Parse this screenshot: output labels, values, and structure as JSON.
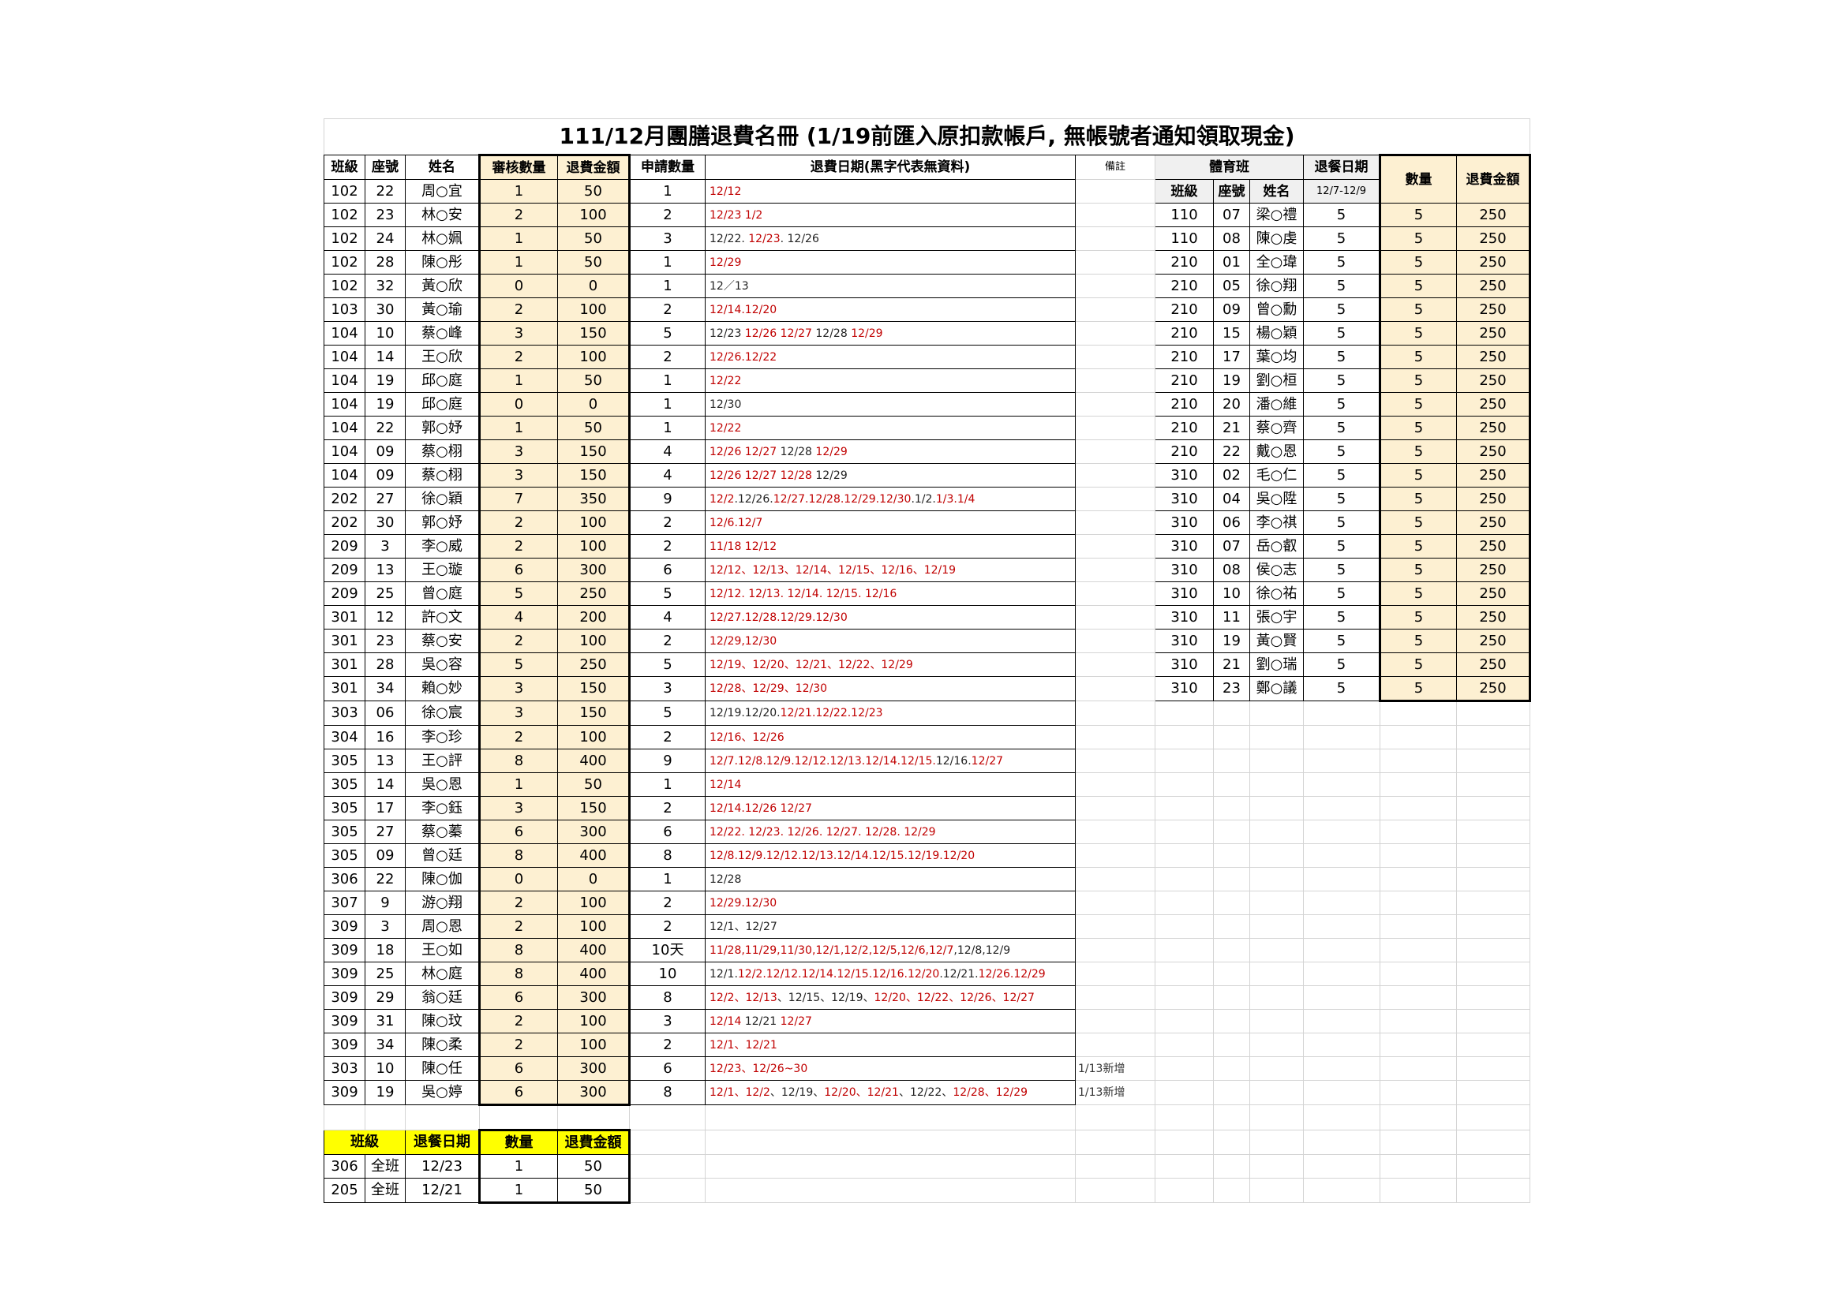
{
  "title": "111/12月團膳退費名冊 (1/19前匯入原扣款帳戶, 無帳號者通知領取現金)",
  "colors": {
    "red": "#c00000",
    "black": "#222222",
    "highlight": "#fdf0d2",
    "yellow": "#ffff00"
  },
  "main": {
    "headers": [
      "班級",
      "座號",
      "姓名",
      "審核數量",
      "退費金額",
      "申請數量",
      "退費日期(黑字代表無資料)",
      "備註"
    ],
    "rows": [
      {
        "cls": "102",
        "seat": "22",
        "name": "周○宜",
        "audit": "1",
        "amount": "50",
        "apply": "1",
        "dates": [
          {
            "t": "12/12",
            "c": "r"
          }
        ],
        "note": ""
      },
      {
        "cls": "102",
        "seat": "23",
        "name": "林○安",
        "audit": "2",
        "amount": "100",
        "apply": "2",
        "dates": [
          {
            "t": "12/23 1/2",
            "c": "r"
          }
        ],
        "note": ""
      },
      {
        "cls": "102",
        "seat": "24",
        "name": "林○姵",
        "audit": "1",
        "amount": "50",
        "apply": "3",
        "dates": [
          {
            "t": "12/22. ",
            "c": "k"
          },
          {
            "t": "12/23",
            "c": "r"
          },
          {
            "t": ". 12/26",
            "c": "k"
          }
        ],
        "note": ""
      },
      {
        "cls": "102",
        "seat": "28",
        "name": "陳○彤",
        "audit": "1",
        "amount": "50",
        "apply": "1",
        "dates": [
          {
            "t": "12/29",
            "c": "r"
          }
        ],
        "note": ""
      },
      {
        "cls": "102",
        "seat": "32",
        "name": "黃○欣",
        "audit": "0",
        "amount": "0",
        "apply": "1",
        "dates": [
          {
            "t": "12／13",
            "c": "k"
          }
        ],
        "note": ""
      },
      {
        "cls": "103",
        "seat": "30",
        "name": "黃○瑜",
        "audit": "2",
        "amount": "100",
        "apply": "2",
        "dates": [
          {
            "t": "12/14.12/20",
            "c": "r"
          }
        ],
        "note": ""
      },
      {
        "cls": "104",
        "seat": "10",
        "name": "蔡○峰",
        "audit": "3",
        "amount": "150",
        "apply": "5",
        "dates": [
          {
            "t": "12/23 ",
            "c": "k"
          },
          {
            "t": "12/26 12/27",
            "c": "r"
          },
          {
            "t": " 12/28 ",
            "c": "k"
          },
          {
            "t": "12/29",
            "c": "r"
          }
        ],
        "note": ""
      },
      {
        "cls": "104",
        "seat": "14",
        "name": "王○欣",
        "audit": "2",
        "amount": "100",
        "apply": "2",
        "dates": [
          {
            "t": "12/26.12/22",
            "c": "r"
          }
        ],
        "note": ""
      },
      {
        "cls": "104",
        "seat": "19",
        "name": "邱○庭",
        "audit": "1",
        "amount": "50",
        "apply": "1",
        "dates": [
          {
            "t": "12/22",
            "c": "r"
          }
        ],
        "note": ""
      },
      {
        "cls": "104",
        "seat": "19",
        "name": "邱○庭",
        "audit": "0",
        "amount": "0",
        "apply": "1",
        "dates": [
          {
            "t": "12/30",
            "c": "k"
          }
        ],
        "note": ""
      },
      {
        "cls": "104",
        "seat": "22",
        "name": "郭○妤",
        "audit": "1",
        "amount": "50",
        "apply": "1",
        "dates": [
          {
            "t": "12/22",
            "c": "r"
          }
        ],
        "note": ""
      },
      {
        "cls": "104",
        "seat": "09",
        "name": "蔡○栩",
        "audit": "3",
        "amount": "150",
        "apply": "4",
        "dates": [
          {
            "t": "12/26 12/27",
            "c": "r"
          },
          {
            "t": " 12/28 ",
            "c": "k"
          },
          {
            "t": "12/29",
            "c": "r"
          }
        ],
        "note": ""
      },
      {
        "cls": "104",
        "seat": "09",
        "name": "蔡○栩",
        "audit": "3",
        "amount": "150",
        "apply": "4",
        "dates": [
          {
            "t": "12/26 12/27 12/28",
            "c": "r"
          },
          {
            "t": " 12/29",
            "c": "k"
          }
        ],
        "note": ""
      },
      {
        "cls": "202",
        "seat": "27",
        "name": "徐○穎",
        "audit": "7",
        "amount": "350",
        "apply": "9",
        "dates": [
          {
            "t": "12/2",
            "c": "r"
          },
          {
            "t": ".12/26.",
            "c": "k"
          },
          {
            "t": "12/27.12/28.12/29.12/30",
            "c": "r"
          },
          {
            "t": ".1/2.",
            "c": "k"
          },
          {
            "t": "1/3.1/4",
            "c": "r"
          }
        ],
        "note": ""
      },
      {
        "cls": "202",
        "seat": "30",
        "name": "郭○妤",
        "audit": "2",
        "amount": "100",
        "apply": "2",
        "dates": [
          {
            "t": "12/6.12/7",
            "c": "r"
          }
        ],
        "note": ""
      },
      {
        "cls": "209",
        "seat": "3",
        "name": "李○威",
        "audit": "2",
        "amount": "100",
        "apply": "2",
        "dates": [
          {
            "t": "11/18 12/12",
            "c": "r"
          }
        ],
        "note": ""
      },
      {
        "cls": "209",
        "seat": "13",
        "name": "王○璇",
        "audit": "6",
        "amount": "300",
        "apply": "6",
        "dates": [
          {
            "t": "12/12、12/13、12/14、12/15、12/16、12/19",
            "c": "r"
          }
        ],
        "note": ""
      },
      {
        "cls": "209",
        "seat": "25",
        "name": "曾○庭",
        "audit": "5",
        "amount": "250",
        "apply": "5",
        "dates": [
          {
            "t": "12/12. 12/13. 12/14. 12/15. 12/16",
            "c": "r"
          }
        ],
        "note": ""
      },
      {
        "cls": "301",
        "seat": "12",
        "name": "許○文",
        "audit": "4",
        "amount": "200",
        "apply": "4",
        "dates": [
          {
            "t": "12/27.12/28.12/29.12/30",
            "c": "r"
          }
        ],
        "note": ""
      },
      {
        "cls": "301",
        "seat": "23",
        "name": "蔡○安",
        "audit": "2",
        "amount": "100",
        "apply": "2",
        "dates": [
          {
            "t": "12/29,12/30",
            "c": "r"
          }
        ],
        "note": ""
      },
      {
        "cls": "301",
        "seat": "28",
        "name": "吳○容",
        "audit": "5",
        "amount": "250",
        "apply": "5",
        "dates": [
          {
            "t": "12/19、12/20、12/21、12/22、12/29",
            "c": "r"
          }
        ],
        "note": ""
      },
      {
        "cls": "301",
        "seat": "34",
        "name": "賴○妙",
        "audit": "3",
        "amount": "150",
        "apply": "3",
        "dates": [
          {
            "t": "12/28、12/29、12/30",
            "c": "r"
          }
        ],
        "note": ""
      },
      {
        "cls": "303",
        "seat": "06",
        "name": "徐○宸",
        "audit": "3",
        "amount": "150",
        "apply": "5",
        "dates": [
          {
            "t": "12/19.12/20.",
            "c": "k"
          },
          {
            "t": "12/21.12/22.12/23",
            "c": "r"
          }
        ],
        "note": ""
      },
      {
        "cls": "304",
        "seat": "16",
        "name": "李○珍",
        "audit": "2",
        "amount": "100",
        "apply": "2",
        "dates": [
          {
            "t": "12/16、12/26",
            "c": "r"
          }
        ],
        "note": ""
      },
      {
        "cls": "305",
        "seat": "13",
        "name": "王○評",
        "audit": "8",
        "amount": "400",
        "apply": "9",
        "dates": [
          {
            "t": "12/7.12/8.12/9.12/12.12/13.12/14.12/15.",
            "c": "r"
          },
          {
            "t": "12/16.",
            "c": "k"
          },
          {
            "t": "12/27",
            "c": "r"
          }
        ],
        "note": ""
      },
      {
        "cls": "305",
        "seat": "14",
        "name": "吳○恩",
        "audit": "1",
        "amount": "50",
        "apply": "1",
        "dates": [
          {
            "t": "12/14",
            "c": "r"
          }
        ],
        "note": ""
      },
      {
        "cls": "305",
        "seat": "17",
        "name": "李○鈺",
        "audit": "3",
        "amount": "150",
        "apply": "2",
        "dates": [
          {
            "t": "12/14.12/26 12/27",
            "c": "r"
          }
        ],
        "note": ""
      },
      {
        "cls": "305",
        "seat": "27",
        "name": "蔡○蓁",
        "audit": "6",
        "amount": "300",
        "apply": "6",
        "dates": [
          {
            "t": "12/22. 12/23. 12/26. 12/27. 12/28. 12/29",
            "c": "r"
          }
        ],
        "note": ""
      },
      {
        "cls": "305",
        "seat": "09",
        "name": "曾○廷",
        "audit": "8",
        "amount": "400",
        "apply": "8",
        "dates": [
          {
            "t": "12/8.12/9.12/12.12/13.12/14.12/15.12/19.12/20",
            "c": "r"
          }
        ],
        "note": ""
      },
      {
        "cls": "306",
        "seat": "22",
        "name": "陳○伽",
        "audit": "0",
        "amount": "0",
        "apply": "1",
        "dates": [
          {
            "t": "12/28",
            "c": "k"
          }
        ],
        "note": ""
      },
      {
        "cls": "307",
        "seat": "9",
        "name": "游○翔",
        "audit": "2",
        "amount": "100",
        "apply": "2",
        "dates": [
          {
            "t": "12/29.12/30",
            "c": "r"
          }
        ],
        "note": ""
      },
      {
        "cls": "309",
        "seat": "3",
        "name": "周○恩",
        "audit": "2",
        "amount": "100",
        "apply": "2",
        "dates": [
          {
            "t": "12/1、12/27",
            "c": "k"
          }
        ],
        "note": ""
      },
      {
        "cls": "309",
        "seat": "18",
        "name": "王○如",
        "audit": "8",
        "amount": "400",
        "apply": "10天",
        "dates": [
          {
            "t": "11/28,11/29,11/30,12/1,12/2,12/5,12/6,12/7",
            "c": "r"
          },
          {
            "t": ",12/8,12/9",
            "c": "k"
          }
        ],
        "note": ""
      },
      {
        "cls": "309",
        "seat": "25",
        "name": "林○庭",
        "audit": "8",
        "amount": "400",
        "apply": "10",
        "dates": [
          {
            "t": "12/1.",
            "c": "k"
          },
          {
            "t": "12/2.12/12.12/14.12/15.12/16.12/20",
            "c": "r"
          },
          {
            "t": ".12/21.",
            "c": "k"
          },
          {
            "t": "12/26.12/29",
            "c": "r"
          }
        ],
        "note": ""
      },
      {
        "cls": "309",
        "seat": "29",
        "name": "翁○廷",
        "audit": "6",
        "amount": "300",
        "apply": "8",
        "dates": [
          {
            "t": "12/2、12/13",
            "c": "r"
          },
          {
            "t": "、12/15、12/19、",
            "c": "k"
          },
          {
            "t": "12/20、12/22、12/26、12/27",
            "c": "r"
          }
        ],
        "note": ""
      },
      {
        "cls": "309",
        "seat": "31",
        "name": "陳○玟",
        "audit": "2",
        "amount": "100",
        "apply": "3",
        "dates": [
          {
            "t": "12/14",
            "c": "r"
          },
          {
            "t": " 12/21 ",
            "c": "k"
          },
          {
            "t": "12/27",
            "c": "r"
          }
        ],
        "note": ""
      },
      {
        "cls": "309",
        "seat": "34",
        "name": "陳○柔",
        "audit": "2",
        "amount": "100",
        "apply": "2",
        "dates": [
          {
            "t": "12/1、12/21",
            "c": "r"
          }
        ],
        "note": ""
      },
      {
        "cls": "303",
        "seat": "10",
        "name": "陳○任",
        "audit": "6",
        "amount": "300",
        "apply": "6",
        "dates": [
          {
            "t": "12/23、12/26~30",
            "c": "r"
          }
        ],
        "note": "1/13新增"
      },
      {
        "cls": "309",
        "seat": "19",
        "name": "吳○婷",
        "audit": "6",
        "amount": "300",
        "apply": "8",
        "dates": [
          {
            "t": "12/1、12/2",
            "c": "r"
          },
          {
            "t": "、12/19、",
            "c": "k"
          },
          {
            "t": "12/20、12/21",
            "c": "r"
          },
          {
            "t": "、12/22、",
            "c": "k"
          },
          {
            "t": "12/28、12/29",
            "c": "r"
          }
        ],
        "note": "1/13新增"
      }
    ]
  },
  "sports": {
    "group_label": "體育班",
    "date_label": "退餐日期",
    "qty_label": "數量",
    "amount_label": "退費金額",
    "sub_headers": [
      "班級",
      "座號",
      "姓名"
    ],
    "date_range": "12/7-12/9",
    "rows": [
      {
        "cls": "110",
        "seat": "07",
        "name": "梁○禮",
        "days": "5",
        "qty": "5",
        "amount": "250"
      },
      {
        "cls": "110",
        "seat": "08",
        "name": "陳○虔",
        "days": "5",
        "qty": "5",
        "amount": "250"
      },
      {
        "cls": "210",
        "seat": "01",
        "name": "全○瑋",
        "days": "5",
        "qty": "5",
        "amount": "250"
      },
      {
        "cls": "210",
        "seat": "05",
        "name": "徐○翔",
        "days": "5",
        "qty": "5",
        "amount": "250"
      },
      {
        "cls": "210",
        "seat": "09",
        "name": "曾○勳",
        "days": "5",
        "qty": "5",
        "amount": "250"
      },
      {
        "cls": "210",
        "seat": "15",
        "name": "楊○穎",
        "days": "5",
        "qty": "5",
        "amount": "250"
      },
      {
        "cls": "210",
        "seat": "17",
        "name": "葉○均",
        "days": "5",
        "qty": "5",
        "amount": "250"
      },
      {
        "cls": "210",
        "seat": "19",
        "name": "劉○桓",
        "days": "5",
        "qty": "5",
        "amount": "250"
      },
      {
        "cls": "210",
        "seat": "20",
        "name": "潘○維",
        "days": "5",
        "qty": "5",
        "amount": "250"
      },
      {
        "cls": "210",
        "seat": "21",
        "name": "蔡○齊",
        "days": "5",
        "qty": "5",
        "amount": "250"
      },
      {
        "cls": "210",
        "seat": "22",
        "name": "戴○恩",
        "days": "5",
        "qty": "5",
        "amount": "250"
      },
      {
        "cls": "310",
        "seat": "02",
        "name": "毛○仁",
        "days": "5",
        "qty": "5",
        "amount": "250"
      },
      {
        "cls": "310",
        "seat": "04",
        "name": "吳○陞",
        "days": "5",
        "qty": "5",
        "amount": "250"
      },
      {
        "cls": "310",
        "seat": "06",
        "name": "李○祺",
        "days": "5",
        "qty": "5",
        "amount": "250"
      },
      {
        "cls": "310",
        "seat": "07",
        "name": "岳○叡",
        "days": "5",
        "qty": "5",
        "amount": "250"
      },
      {
        "cls": "310",
        "seat": "08",
        "name": "侯○志",
        "days": "5",
        "qty": "5",
        "amount": "250"
      },
      {
        "cls": "310",
        "seat": "10",
        "name": "徐○祐",
        "days": "5",
        "qty": "5",
        "amount": "250"
      },
      {
        "cls": "310",
        "seat": "11",
        "name": "張○宇",
        "days": "5",
        "qty": "5",
        "amount": "250"
      },
      {
        "cls": "310",
        "seat": "19",
        "name": "黃○賢",
        "days": "5",
        "qty": "5",
        "amount": "250"
      },
      {
        "cls": "310",
        "seat": "21",
        "name": "劉○瑞",
        "days": "5",
        "qty": "5",
        "amount": "250"
      },
      {
        "cls": "310",
        "seat": "23",
        "name": "鄭○議",
        "days": "5",
        "qty": "5",
        "amount": "250"
      }
    ]
  },
  "whole_class": {
    "headers": [
      "班級",
      "退餐日期",
      "數量",
      "退費金額"
    ],
    "rows": [
      {
        "cls": "306",
        "scope": "全班",
        "date": "12/23",
        "qty": "1",
        "amount": "50"
      },
      {
        "cls": "205",
        "scope": "全班",
        "date": "12/21",
        "qty": "1",
        "amount": "50"
      }
    ]
  }
}
